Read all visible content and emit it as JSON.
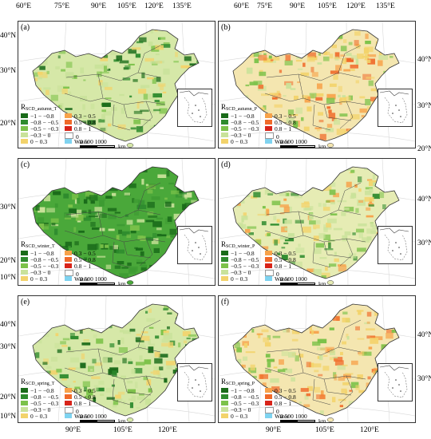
{
  "top_axis_labels": [
    "60°E",
    "75°E",
    "90°E",
    "105°E",
    "120°E",
    "135°E"
  ],
  "bottom_axis_labels": [
    "90°E",
    "105°E",
    "120°E"
  ],
  "left_lat_labels": [
    "40°N",
    "30°N",
    "20°N",
    "10°N"
  ],
  "right_lat_labels": [
    "40°N",
    "30°N",
    "20°N"
  ],
  "legend": {
    "items_col1": [
      {
        "label": "−1 − −0.8",
        "color": "#1a6b1a"
      },
      {
        "label": "−0.8 − −0.5",
        "color": "#2e8b2e"
      },
      {
        "label": "−0.5 − −0.3",
        "color": "#7cc24a"
      },
      {
        "label": "−0.3 − 0",
        "color": "#c9e29a"
      },
      {
        "label": "0 − 0.3",
        "color": "#f3d36b"
      }
    ],
    "items_col2": [
      {
        "label": "0.3 − 0.5",
        "color": "#f7a24a"
      },
      {
        "label": "0.5 − 0.8",
        "color": "#f06a2a"
      },
      {
        "label": "0.8 − 1",
        "color": "#d8241a"
      },
      {
        "label": "0",
        "color": "#ffffff"
      },
      {
        "label": "Water",
        "color": "#7fd3f0"
      }
    ],
    "scale_numbers": "0   500 1000",
    "scale_unit": "km"
  },
  "panels": [
    {
      "id": "a",
      "label": "(a)",
      "title_main": "R",
      "title_sub": "SCD_autumn_T",
      "style": "temp_mid"
    },
    {
      "id": "b",
      "label": "(b)",
      "title_main": "R",
      "title_sub": "SCD_autumn_P",
      "style": "precip_mixed"
    },
    {
      "id": "c",
      "label": "(c)",
      "title_main": "R",
      "title_sub": "SCD_winter_T",
      "style": "temp_strong"
    },
    {
      "id": "d",
      "label": "(d)",
      "title_main": "R",
      "title_sub": "SCD_winter_P",
      "style": "precip_light"
    },
    {
      "id": "e",
      "label": "(e)",
      "title_main": "R",
      "title_sub": "SCD_spring_T",
      "style": "temp_mid"
    },
    {
      "id": "f",
      "label": "(f)",
      "title_main": "R",
      "title_sub": "SCD_spring_P",
      "style": "precip_mixed"
    }
  ]
}
